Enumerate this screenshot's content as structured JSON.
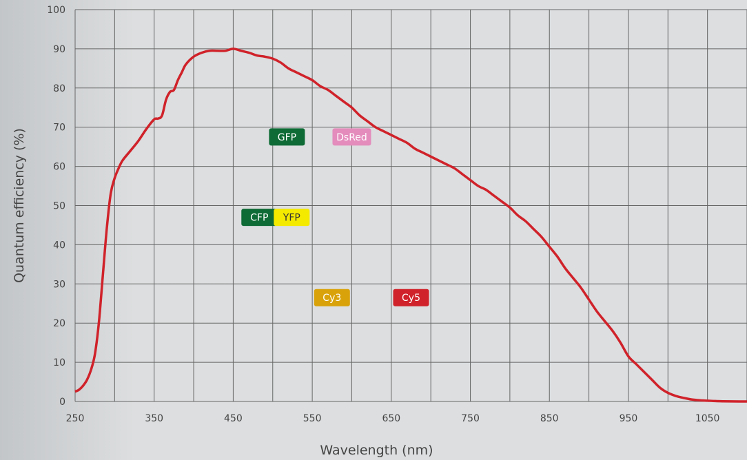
{
  "chart_data": {
    "type": "line",
    "title": "",
    "xlabel": "Wavelength (nm)",
    "ylabel": "Quantum efficiency (%)",
    "xlim": [
      250,
      1100
    ],
    "ylim": [
      0,
      100
    ],
    "grid": true,
    "x_ticks": [
      250,
      350,
      450,
      550,
      650,
      750,
      850,
      950,
      1050
    ],
    "y_ticks": [
      0,
      10,
      20,
      30,
      40,
      50,
      60,
      70,
      80,
      90,
      100
    ],
    "series": [
      {
        "color": "#d0222a",
        "x": [
          250,
          255,
          260,
          265,
          270,
          275,
          280,
          285,
          290,
          295,
          300,
          305,
          310,
          320,
          330,
          340,
          350,
          355,
          360,
          365,
          370,
          375,
          380,
          385,
          390,
          400,
          410,
          420,
          430,
          440,
          450,
          460,
          470,
          480,
          490,
          500,
          510,
          520,
          530,
          540,
          550,
          560,
          570,
          580,
          590,
          600,
          610,
          620,
          630,
          640,
          650,
          660,
          670,
          680,
          690,
          700,
          710,
          720,
          730,
          740,
          750,
          760,
          770,
          780,
          790,
          800,
          810,
          820,
          830,
          840,
          850,
          860,
          870,
          880,
          890,
          900,
          910,
          920,
          930,
          940,
          950,
          960,
          970,
          980,
          990,
          1000,
          1010,
          1020,
          1030,
          1040,
          1050,
          1060,
          1070,
          1080,
          1090,
          1100
        ],
        "y": [
          2.5,
          3,
          4,
          5.5,
          8,
          12,
          20,
          32,
          44,
          53,
          57,
          59.5,
          61.5,
          64,
          66.5,
          69.5,
          72,
          72.2,
          73,
          77,
          79,
          79.5,
          82,
          84,
          86,
          88,
          89,
          89.5,
          89.5,
          89.5,
          90,
          89.5,
          89,
          88.3,
          88,
          87.5,
          86.5,
          85,
          84,
          83,
          82,
          80.5,
          79.5,
          78,
          76.5,
          75,
          73,
          71.5,
          70,
          69,
          68,
          67,
          66,
          64.5,
          63.5,
          62.5,
          61.5,
          60.5,
          59.5,
          58,
          56.5,
          55,
          54,
          52.5,
          51,
          49.5,
          47.5,
          46,
          44,
          42,
          39.5,
          37,
          34,
          31.5,
          29,
          26,
          23,
          20.5,
          18,
          15,
          11.5,
          9.5,
          7.5,
          5.5,
          3.5,
          2.2,
          1.4,
          0.9,
          0.5,
          0.3,
          0.2,
          0.1,
          0.05,
          0.02,
          0.01,
          0.0
        ]
      }
    ],
    "annotations": [
      {
        "text": "GFP",
        "x": 518,
        "y": 67.5,
        "bg": "#0e6b35",
        "color": "#ffffff"
      },
      {
        "text": "DsRed",
        "x": 600,
        "y": 67.5,
        "bg": "#e48cbc",
        "color": "#ffffff"
      },
      {
        "text": "CFP",
        "x": 483,
        "y": 47,
        "bg": "#0e6b35",
        "color": "#ffffff"
      },
      {
        "text": "YFP",
        "x": 524,
        "y": 47,
        "bg": "#f4ea00",
        "color": "#333333"
      },
      {
        "text": "Cy3",
        "x": 575,
        "y": 26.5,
        "bg": "#d9a20a",
        "color": "#ffffff"
      },
      {
        "text": "Cy5",
        "x": 675,
        "y": 26.5,
        "bg": "#d0222a",
        "color": "#ffffff"
      }
    ]
  }
}
